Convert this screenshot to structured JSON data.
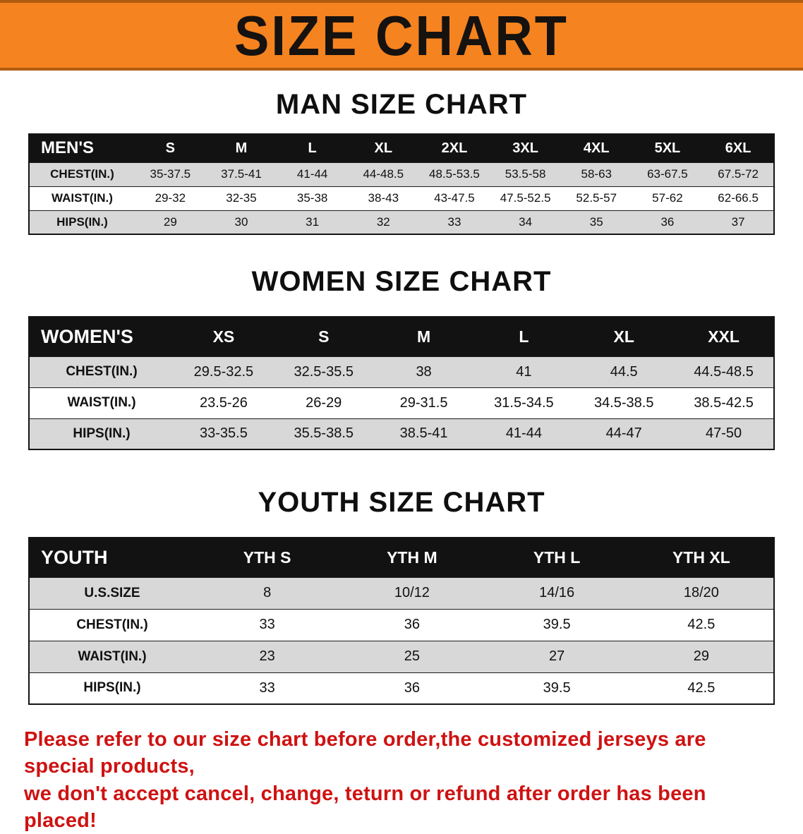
{
  "banner": {
    "title": "SIZE CHART",
    "bg_color": "#F5831F",
    "text_color": "#151210"
  },
  "sections": [
    {
      "heading": "MAN SIZE CHART",
      "table": {
        "label": "MEN'S",
        "columns": [
          "S",
          "M",
          "L",
          "XL",
          "2XL",
          "3XL",
          "4XL",
          "5XL",
          "6XL"
        ],
        "rows": [
          {
            "label": "CHEST(IN.)",
            "values": [
              "35-37.5",
              "37.5-41",
              "41-44",
              "44-48.5",
              "48.5-53.5",
              "53.5-58",
              "58-63",
              "63-67.5",
              "67.5-72"
            ]
          },
          {
            "label": "WAIST(IN.)",
            "values": [
              "29-32",
              "32-35",
              "35-38",
              "38-43",
              "43-47.5",
              "47.5-52.5",
              "52.5-57",
              "57-62",
              "62-66.5"
            ]
          },
          {
            "label": "HIPS(IN.)",
            "values": [
              "29",
              "30",
              "31",
              "32",
              "33",
              "34",
              "35",
              "36",
              "37"
            ]
          }
        ]
      }
    },
    {
      "heading": "WOMEN SIZE CHART",
      "table": {
        "label": "WOMEN'S",
        "columns": [
          "XS",
          "S",
          "M",
          "L",
          "XL",
          "XXL"
        ],
        "rows": [
          {
            "label": "CHEST(IN.)",
            "values": [
              "29.5-32.5",
              "32.5-35.5",
              "38",
              "41",
              "44.5",
              "44.5-48.5"
            ]
          },
          {
            "label": "WAIST(IN.)",
            "values": [
              "23.5-26",
              "26-29",
              "29-31.5",
              "31.5-34.5",
              "34.5-38.5",
              "38.5-42.5"
            ]
          },
          {
            "label": "HIPS(IN.)",
            "values": [
              "33-35.5",
              "35.5-38.5",
              "38.5-41",
              "41-44",
              "44-47",
              "47-50"
            ]
          }
        ]
      }
    },
    {
      "heading": "YOUTH SIZE CHART",
      "table": {
        "label": "YOUTH",
        "columns": [
          "YTH S",
          "YTH M",
          "YTH L",
          "YTH XL"
        ],
        "rows": [
          {
            "label": "U.S.SIZE",
            "values": [
              "8",
              "10/12",
              "14/16",
              "18/20"
            ]
          },
          {
            "label": "CHEST(IN.)",
            "values": [
              "33",
              "36",
              "39.5",
              "42.5"
            ]
          },
          {
            "label": "WAIST(IN.)",
            "values": [
              "23",
              "25",
              "27",
              "29"
            ]
          },
          {
            "label": "HIPS(IN.)",
            "values": [
              "33",
              "36",
              "39.5",
              "42.5"
            ]
          }
        ]
      }
    }
  ],
  "footer": {
    "line1": "Please refer to our size chart before order,the customized jerseys are special products,",
    "line2": "we don't accept cancel, change, teturn or refund after order has been placed!",
    "text_color": "#cf1212"
  }
}
